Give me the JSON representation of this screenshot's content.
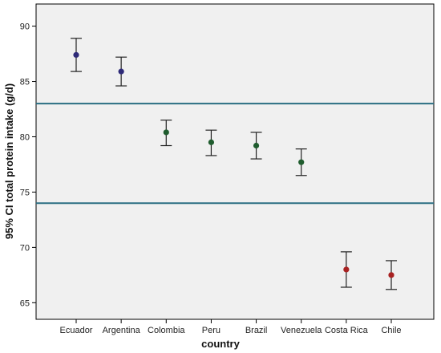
{
  "chart_data": {
    "type": "scatter",
    "subtype": "error-bar",
    "title": "",
    "xlabel": "country",
    "ylabel": "95% CI total protein intake (g/d)",
    "ylim": [
      63.5,
      92
    ],
    "yticks": [
      65,
      70,
      75,
      80,
      85,
      90
    ],
    "grid": false,
    "background_color": "#f0f0f0",
    "categories": [
      "Ecuador",
      "Argentina",
      "Colombia",
      "Peru",
      "Brazil",
      "Venezuela",
      "Costa Rica",
      "Chile"
    ],
    "mean": [
      87.4,
      85.9,
      80.4,
      79.5,
      79.2,
      77.7,
      68.0,
      67.5
    ],
    "ci_lower": [
      85.9,
      84.6,
      79.2,
      78.3,
      78.0,
      76.5,
      66.4,
      66.2
    ],
    "ci_upper": [
      88.9,
      87.2,
      81.5,
      80.6,
      80.4,
      78.9,
      69.6,
      68.8
    ],
    "point_colors": [
      "#2e2a78",
      "#2e2a78",
      "#1f5c2e",
      "#1f5c2e",
      "#1f5c2e",
      "#1f5c2e",
      "#a82222",
      "#a82222"
    ],
    "reference_lines": [
      {
        "y": 83.0,
        "color": "#2a6e82"
      },
      {
        "y": 74.0,
        "color": "#2a6e82"
      }
    ],
    "errorbar_color": "#222222"
  }
}
